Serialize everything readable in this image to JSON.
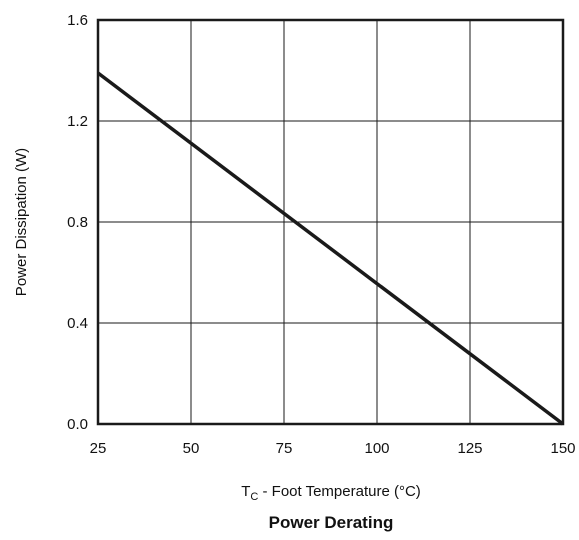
{
  "chart_data": {
    "type": "line",
    "title": "Power Derating",
    "xlabel": {
      "symbol": "T",
      "subscript": "C",
      "text": " - Foot Temperature (°C)"
    },
    "ylabel": "Power Dissipation (W)",
    "xlim": [
      25,
      150
    ],
    "ylim": [
      0.0,
      1.6
    ],
    "x_ticks": [
      25,
      50,
      75,
      100,
      125,
      150
    ],
    "y_ticks": [
      0.0,
      0.4,
      0.8,
      1.2,
      1.6
    ],
    "x_tick_labels": [
      "25",
      "50",
      "75",
      "100",
      "125",
      "150"
    ],
    "y_tick_labels": [
      "0.0",
      "0.4",
      "0.8",
      "1.2",
      "1.6"
    ],
    "grid": true,
    "series": [
      {
        "x": [
          25,
          150
        ],
        "y": [
          1.39,
          0.0
        ]
      }
    ]
  },
  "colors": {
    "line": "#1a1a1a",
    "grid": "#1a1a1a",
    "frame": "#1a1a1a",
    "background": "#ffffff"
  }
}
